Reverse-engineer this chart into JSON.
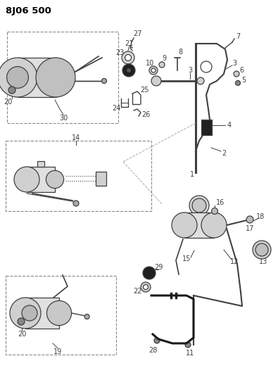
{
  "title": "8J06 500",
  "bg_color": "#ffffff",
  "fig_width": 3.95,
  "fig_height": 5.33,
  "dpi": 100,
  "line_color": "#404040",
  "gray_fill": "#c8c8c8",
  "dark_fill": "#202020"
}
